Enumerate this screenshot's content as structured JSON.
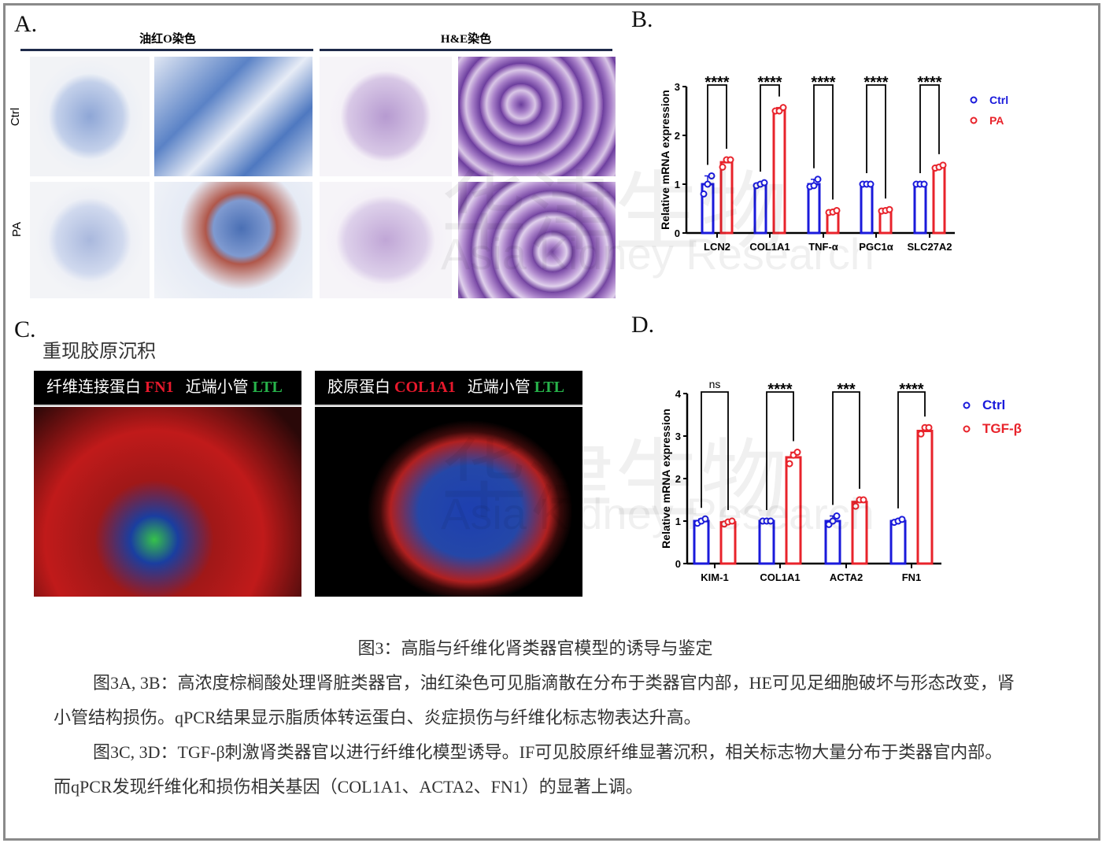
{
  "panel_a": {
    "label": "A.",
    "header_left": "油红O染色",
    "header_right": "H&E染色",
    "rows": [
      "Ctrl",
      "PA"
    ]
  },
  "panel_b": {
    "label": "B."
  },
  "panel_c": {
    "label": "C.",
    "title": "重现胶原沉积",
    "left_header": {
      "a": "纤维连接蛋白 ",
      "b": "FN1",
      "c": "   近端小管 ",
      "d": "LTL"
    },
    "right_header": {
      "a": "胶原蛋白 ",
      "b": "COL1A1",
      "c": "   近端小管 ",
      "d": "LTL"
    }
  },
  "panel_d": {
    "label": "D."
  },
  "watermark": {
    "cn": "华津生物",
    "en": "Asia Kidney Research"
  },
  "caption": {
    "title": "图3：高脂与纤维化肾类器官模型的诱导与鉴定",
    "p1": "图3A, 3B：高浓度棕榈酸处理肾脏类器官，油红染色可见脂滴散在分布于类器官内部，HE可见足细胞破坏与形态改变，肾小管结构损伤。qPCR结果显示脂质体转运蛋白、炎症损伤与纤维化标志物表达升高。",
    "p2": "图3C, 3D：TGF-β刺激肾类器官以进行纤维化模型诱导。IF可见胶原纤维显著沉积，相关标志物大量分布于类器官内部。而qPCR发现纤维化和损伤相关基因（COL1A1、ACTA2、FN1）的显著上调。"
  },
  "chart_data": [
    {
      "type": "bar",
      "ylabel": "Relative mRNA expression",
      "ylim": [
        0,
        3
      ],
      "yticks": [
        0,
        1,
        2,
        3
      ],
      "categories": [
        "LCN2",
        "COL1A1",
        "TNF-α",
        "PGC1α",
        "SLC27A2"
      ],
      "significance": [
        "****",
        "****",
        "****",
        "****",
        "****"
      ],
      "legend_position": "right",
      "colors": {
        "Ctrl": "#1a1adb",
        "PA": "#e8232b"
      },
      "series": [
        {
          "name": "Ctrl",
          "values": [
            1.0,
            1.0,
            1.0,
            1.0,
            1.0
          ],
          "points": [
            [
              0.8,
              1.0,
              1.17
            ],
            [
              0.97,
              1.0,
              1.03
            ],
            [
              0.95,
              0.97,
              1.1
            ],
            [
              1.0,
              1.0,
              1.0
            ],
            [
              1.0,
              1.0,
              1.0
            ]
          ]
        },
        {
          "name": "PA",
          "values": [
            1.45,
            2.52,
            0.43,
            0.46,
            1.35
          ],
          "points": [
            [
              1.35,
              1.5,
              1.5
            ],
            [
              2.5,
              2.5,
              2.57
            ],
            [
              0.42,
              0.43,
              0.46
            ],
            [
              0.45,
              0.46,
              0.48
            ],
            [
              1.33,
              1.35,
              1.39
            ]
          ]
        }
      ]
    },
    {
      "type": "bar",
      "ylabel": "Relative mRNA expression",
      "ylim": [
        0,
        4
      ],
      "yticks": [
        0,
        1,
        2,
        3,
        4
      ],
      "categories": [
        "KIM-1",
        "COL1A1",
        "ACTA2",
        "FN1"
      ],
      "significance": [
        "ns",
        "****",
        "***",
        "****"
      ],
      "legend_position": "right",
      "colors": {
        "Ctrl": "#1a1adb",
        "TGF-β": "#e8232b"
      },
      "series": [
        {
          "name": "Ctrl",
          "values": [
            1.0,
            1.0,
            1.0,
            1.0
          ],
          "points": [
            [
              0.95,
              1.0,
              1.05
            ],
            [
              1.0,
              1.0,
              1.0
            ],
            [
              0.92,
              1.0,
              1.12
            ],
            [
              0.97,
              1.0,
              1.04
            ]
          ]
        },
        {
          "name": "TGF-β",
          "values": [
            0.97,
            2.5,
            1.45,
            3.12
          ],
          "points": [
            [
              0.93,
              0.98,
              1.0
            ],
            [
              2.35,
              2.55,
              2.62
            ],
            [
              1.35,
              1.5,
              1.5
            ],
            [
              3.05,
              3.2,
              3.2
            ]
          ]
        }
      ]
    }
  ]
}
